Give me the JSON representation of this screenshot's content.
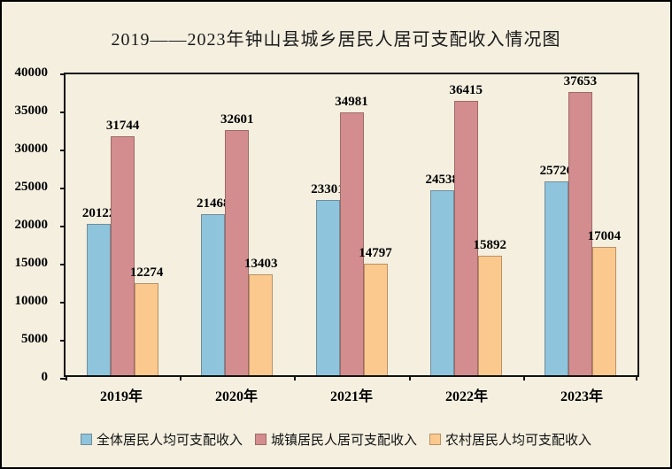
{
  "chart_data": {
    "type": "bar",
    "title": "2019——2023年钟山县城乡居民人居可支配收入情况图",
    "categories": [
      "2019年",
      "2020年",
      "2021年",
      "2022年",
      "2023年"
    ],
    "series": [
      {
        "name": "全体居民人均可支配收入",
        "color": "#8EC4DC",
        "values": [
          20122,
          21468,
          23301,
          24538,
          25726
        ]
      },
      {
        "name": "城镇居民人居可支配收入",
        "color": "#D38D8F",
        "values": [
          31744,
          32601,
          34981,
          36415,
          37653
        ]
      },
      {
        "name": "农村居民人均可支配收入",
        "color": "#FBC98E",
        "values": [
          12274,
          13403,
          14797,
          15892,
          17004
        ]
      }
    ],
    "ylim": [
      0,
      40000
    ],
    "ytick_step": 5000,
    "grid": false,
    "legend_position": "bottom",
    "background_color": "#F4EFDF",
    "border_color": "#000000"
  }
}
